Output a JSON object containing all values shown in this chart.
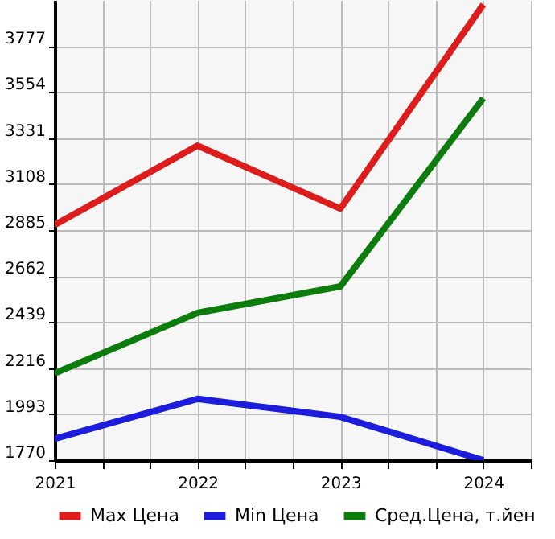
{
  "chart_data": {
    "type": "line",
    "x": [
      2021,
      2022,
      2023,
      2024
    ],
    "series": [
      {
        "name": "Max Цена",
        "color": "#dd1c1c",
        "values": [
          2910,
          3294,
          2989,
          3978
        ]
      },
      {
        "name": "Min Цена",
        "color": "#1c1cdd",
        "values": [
          1874,
          2067,
          1980,
          1770
        ]
      },
      {
        "name": "Сред.Цена, т.йен",
        "color": "#0c7d0c",
        "values": [
          2191,
          2484,
          2612,
          3524
        ]
      }
    ],
    "xlim": [
      2021,
      2024.333
    ],
    "xticks": [
      2021,
      {
        "value": 2021.333,
        "label": null
      },
      {
        "value": 2021.667,
        "label": null
      },
      2022,
      {
        "value": 2022.333,
        "label": null
      },
      {
        "value": 2022.667,
        "label": null
      },
      2023,
      {
        "value": 2023.333,
        "label": null
      },
      {
        "value": 2023.667,
        "label": null
      },
      2024,
      {
        "value": 2024.333,
        "label": null
      }
    ],
    "ylim": [
      1770,
      4000
    ],
    "yticks": [
      1770,
      1993,
      2216,
      2439,
      2662,
      2885,
      3108,
      3331,
      3554,
      3777
    ],
    "grid": true,
    "legend": "bottom",
    "marker": "none",
    "line_style": "solid"
  }
}
